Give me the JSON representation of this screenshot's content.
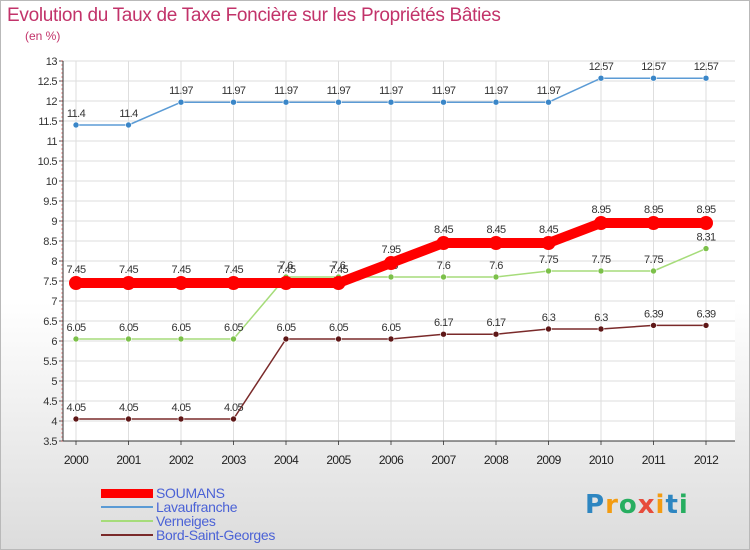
{
  "chart_data": {
    "type": "line",
    "title": "Evolution du Taux de Taxe Foncière sur les Propriétés Bâties",
    "unit_label": "(en %)",
    "xlabel": "",
    "ylabel": "",
    "ylim": [
      3.5,
      13
    ],
    "y_ticks": [
      "3.5",
      "4",
      "4.5",
      "5",
      "5.5",
      "6",
      "6.5",
      "7",
      "7.5",
      "8",
      "8.5",
      "9",
      "9.5",
      "10",
      "10.5",
      "11",
      "11.5",
      "12",
      "12.5",
      "13"
    ],
    "categories": [
      "2000",
      "2001",
      "2002",
      "2003",
      "2004",
      "2005",
      "2006",
      "2007",
      "2008",
      "2009",
      "2010",
      "2011",
      "2012"
    ],
    "grid": true,
    "legend_position": "bottom-left",
    "series": [
      {
        "name": "Lavaufranche",
        "color": "#5b9bd5",
        "marker": "#3a86c8",
        "values": [
          11.4,
          11.4,
          11.97,
          11.97,
          11.97,
          11.97,
          11.97,
          11.97,
          11.97,
          11.97,
          12.57,
          12.57,
          12.57
        ],
        "labels": [
          "11.4",
          "11.4",
          "11.97",
          "11.97",
          "11.97",
          "11.97",
          "11.97",
          "11.97",
          "11.97",
          "11.97",
          "12.57",
          "12.57",
          "12.57"
        ]
      },
      {
        "name": "Verneiges",
        "color": "#a6dc7a",
        "marker": "#7cc04a",
        "values": [
          6.05,
          6.05,
          6.05,
          6.05,
          7.6,
          7.6,
          7.6,
          7.6,
          7.6,
          7.75,
          7.75,
          7.75,
          8.31
        ],
        "labels": [
          "6.05",
          "6.05",
          "6.05",
          "6.05",
          "7.6",
          "7.6",
          "7.6",
          "7.6",
          "7.6",
          "7.75",
          "7.75",
          "7.75",
          "8.31"
        ]
      },
      {
        "name": "Bord-Saint-Georges",
        "color": "#7a2a2a",
        "marker": "#5e1717",
        "values": [
          4.05,
          4.05,
          4.05,
          4.05,
          6.05,
          6.05,
          6.05,
          6.17,
          6.17,
          6.3,
          6.3,
          6.39,
          6.39
        ],
        "labels": [
          "4.05",
          "4.05",
          "4.05",
          "4.05",
          "6.05",
          "6.05",
          "6.05",
          "6.17",
          "6.17",
          "6.3",
          "6.3",
          "6.39",
          "6.39"
        ]
      },
      {
        "name": "SOUMANS",
        "color": "#ff0000",
        "marker": "#ff0000",
        "values": [
          7.45,
          7.45,
          7.45,
          7.45,
          7.45,
          7.45,
          7.95,
          8.45,
          8.45,
          8.45,
          8.95,
          8.95,
          8.95
        ],
        "labels": [
          "7.45",
          "7.45",
          "7.45",
          "7.45",
          "7.45",
          "7.45",
          "7.95",
          "8.45",
          "8.45",
          "8.45",
          "8.95",
          "8.95",
          "8.95"
        ]
      }
    ]
  },
  "legend": {
    "items": [
      {
        "label": "SOUMANS",
        "color": "#ff0000",
        "text_color": "#4b62d6"
      },
      {
        "label": "Lavaufranche",
        "color": "#5b9bd5",
        "text_color": "#4b62d6"
      },
      {
        "label": "Verneiges",
        "color": "#a6dc7a",
        "text_color": "#4b62d6"
      },
      {
        "label": "Bord-Saint-Georges",
        "color": "#7a2a2a",
        "text_color": "#4b62d6"
      }
    ]
  },
  "brand": {
    "letters": [
      "P",
      "r",
      "o",
      "x",
      "i",
      "t",
      "i"
    ],
    "colors": [
      "#2e86c1",
      "#f39c12",
      "#27ae60",
      "#e74c3c",
      "#f39c12",
      "#2e86c1",
      "#27ae60"
    ]
  }
}
